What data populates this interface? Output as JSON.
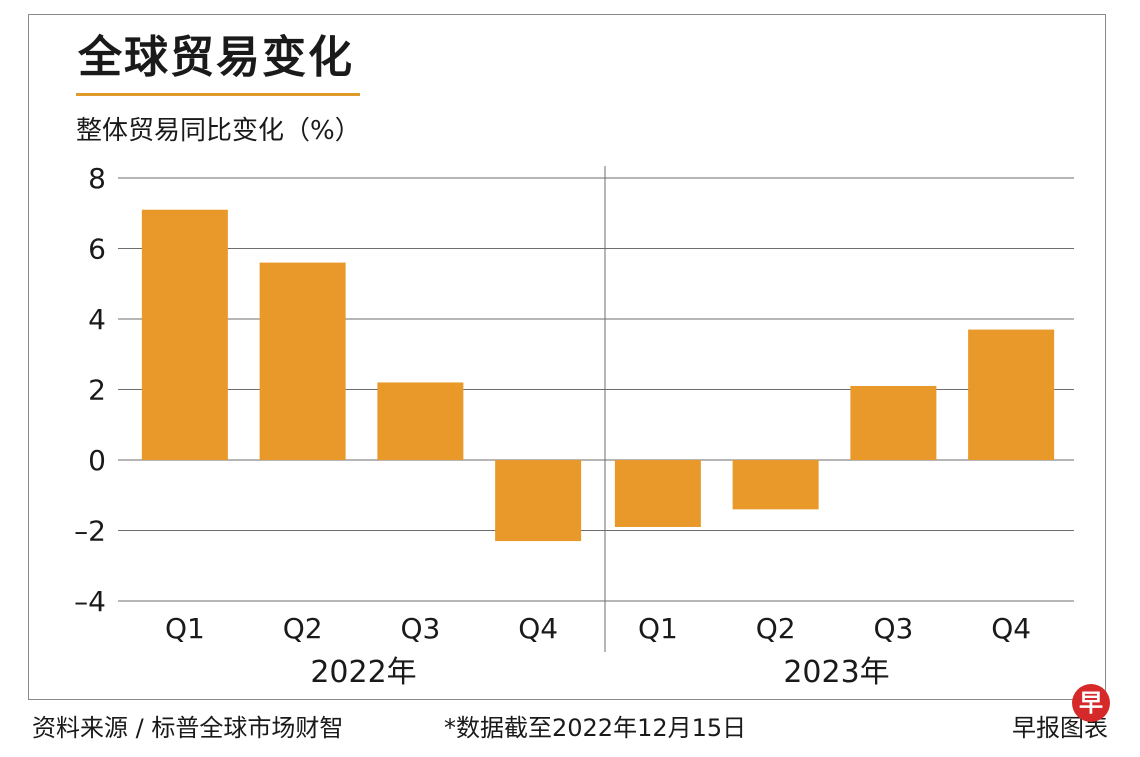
{
  "chart_data": {
    "type": "bar",
    "title": "全球贸易变化",
    "ylabel": "整体贸易同比变化（%）",
    "ylim": [
      -4,
      8
    ],
    "yticks": [
      8,
      6,
      4,
      2,
      0,
      -2,
      -4
    ],
    "ytick_labels": [
      "8",
      "6",
      "4",
      "2",
      "0",
      "–2",
      "–4"
    ],
    "grid": true,
    "categories": [
      "Q1",
      "Q2",
      "Q3",
      "Q4",
      "Q1",
      "Q2",
      "Q3",
      "Q4"
    ],
    "groups": [
      "2022年",
      "2023年"
    ],
    "group_index": [
      0,
      0,
      0,
      0,
      1,
      1,
      1,
      1
    ],
    "values": [
      7.1,
      5.6,
      2.2,
      -2.3,
      -1.9,
      -1.4,
      2.1,
      3.7
    ],
    "bar_color": "#e8992a"
  },
  "footer": {
    "source": "资料来源 / 标普全球市场财智",
    "note": "*数据截至2022年12月15日",
    "brand": "早报图表"
  },
  "logo_text": "早"
}
